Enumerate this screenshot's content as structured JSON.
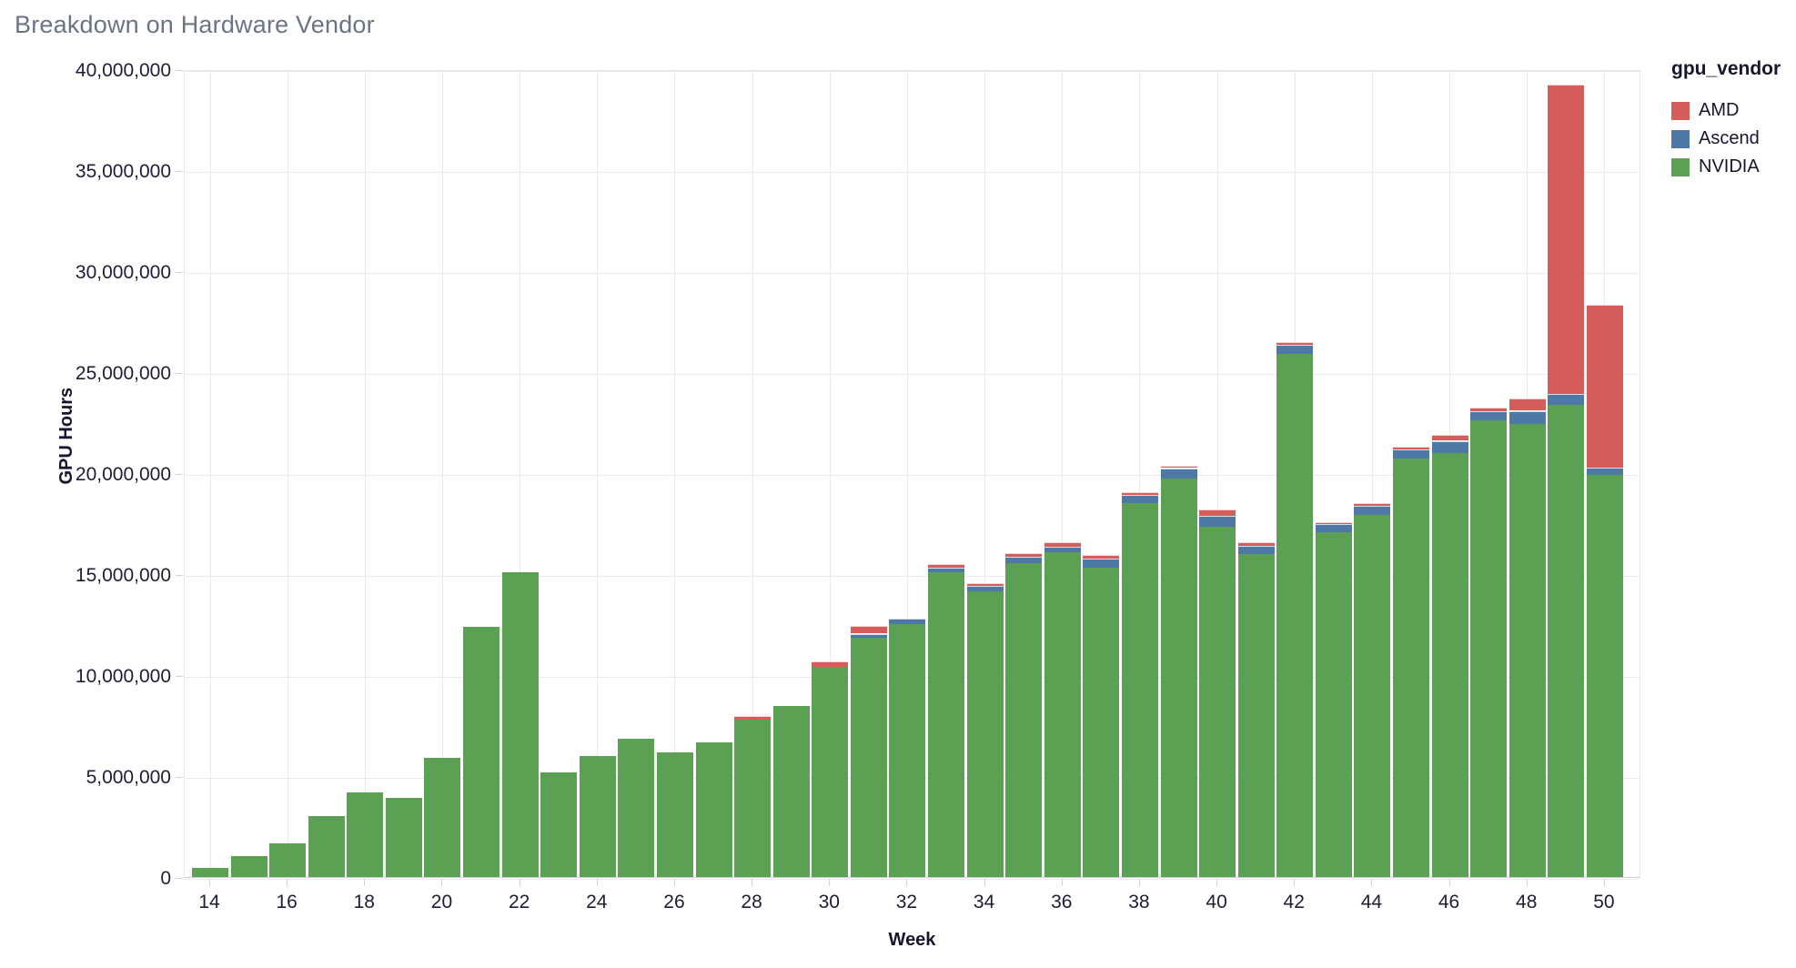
{
  "title": "Breakdown on Hardware Vendor",
  "chart_data": {
    "type": "bar",
    "stacked": true,
    "title": "Breakdown on Hardware Vendor",
    "xlabel": "Week",
    "ylabel": "GPU Hours",
    "legend_title": "gpu_vendor",
    "legend_position": "top-right-outside",
    "grid": true,
    "ylim": [
      0,
      40000000
    ],
    "x": [
      14,
      15,
      16,
      17,
      18,
      19,
      20,
      21,
      22,
      23,
      24,
      25,
      26,
      27,
      28,
      29,
      30,
      31,
      32,
      33,
      34,
      35,
      36,
      37,
      38,
      39,
      40,
      41,
      42,
      43,
      44,
      45,
      46,
      47,
      48,
      49,
      50
    ],
    "x_tick_labels": [
      "14",
      "16",
      "18",
      "20",
      "22",
      "24",
      "26",
      "28",
      "30",
      "32",
      "34",
      "36",
      "38",
      "40",
      "42",
      "44",
      "46",
      "48",
      "50"
    ],
    "x_ticks": [
      14,
      16,
      18,
      20,
      22,
      24,
      26,
      28,
      30,
      32,
      34,
      36,
      38,
      40,
      42,
      44,
      46,
      48,
      50
    ],
    "y_ticks": [
      0,
      5000000,
      10000000,
      15000000,
      20000000,
      25000000,
      30000000,
      35000000,
      40000000
    ],
    "y_tick_labels": [
      "0",
      "5,000,000",
      "10,000,000",
      "15,000,000",
      "20,000,000",
      "25,000,000",
      "30,000,000",
      "35,000,000",
      "40,000,000"
    ],
    "stack_order_bottom_to_top": [
      "NVIDIA",
      "Ascend",
      "AMD"
    ],
    "series": [
      {
        "name": "AMD",
        "color": "#d45d5a",
        "values": [
          0,
          0,
          0,
          0,
          0,
          0,
          0,
          0,
          0,
          0,
          0,
          0,
          0,
          0,
          180000,
          0,
          250000,
          350000,
          0,
          200000,
          120000,
          180000,
          230000,
          180000,
          150000,
          100000,
          300000,
          200000,
          150000,
          80000,
          150000,
          150000,
          250000,
          200000,
          600000,
          15300000,
          8050000
        ]
      },
      {
        "name": "Ascend",
        "color": "#4e79a7",
        "values": [
          0,
          0,
          0,
          0,
          0,
          0,
          0,
          0,
          0,
          0,
          0,
          0,
          0,
          0,
          0,
          0,
          0,
          200000,
          250000,
          230000,
          260000,
          300000,
          270000,
          450000,
          400000,
          500000,
          550000,
          400000,
          450000,
          420000,
          450000,
          450000,
          600000,
          450000,
          650000,
          520000,
          380000
        ]
      },
      {
        "name": "NVIDIA",
        "color": "#5ba053",
        "values": [
          450000,
          1050000,
          1650000,
          3000000,
          4200000,
          3900000,
          5900000,
          12400000,
          15100000,
          5200000,
          6000000,
          6850000,
          6150000,
          6650000,
          7800000,
          8450000,
          10400000,
          11850000,
          12500000,
          15100000,
          14150000,
          15550000,
          16100000,
          15300000,
          18500000,
          19750000,
          17350000,
          16000000,
          25900000,
          17050000,
          17950000,
          20700000,
          21000000,
          22600000,
          22450000,
          23400000,
          19900000
        ]
      }
    ]
  },
  "colors": {
    "title_text": "#6a7486",
    "tick_text": "#1d1d37",
    "axis_title_text": "#16162e",
    "gridline": "#e9e9f1",
    "axis_line": "#ccccd8"
  }
}
